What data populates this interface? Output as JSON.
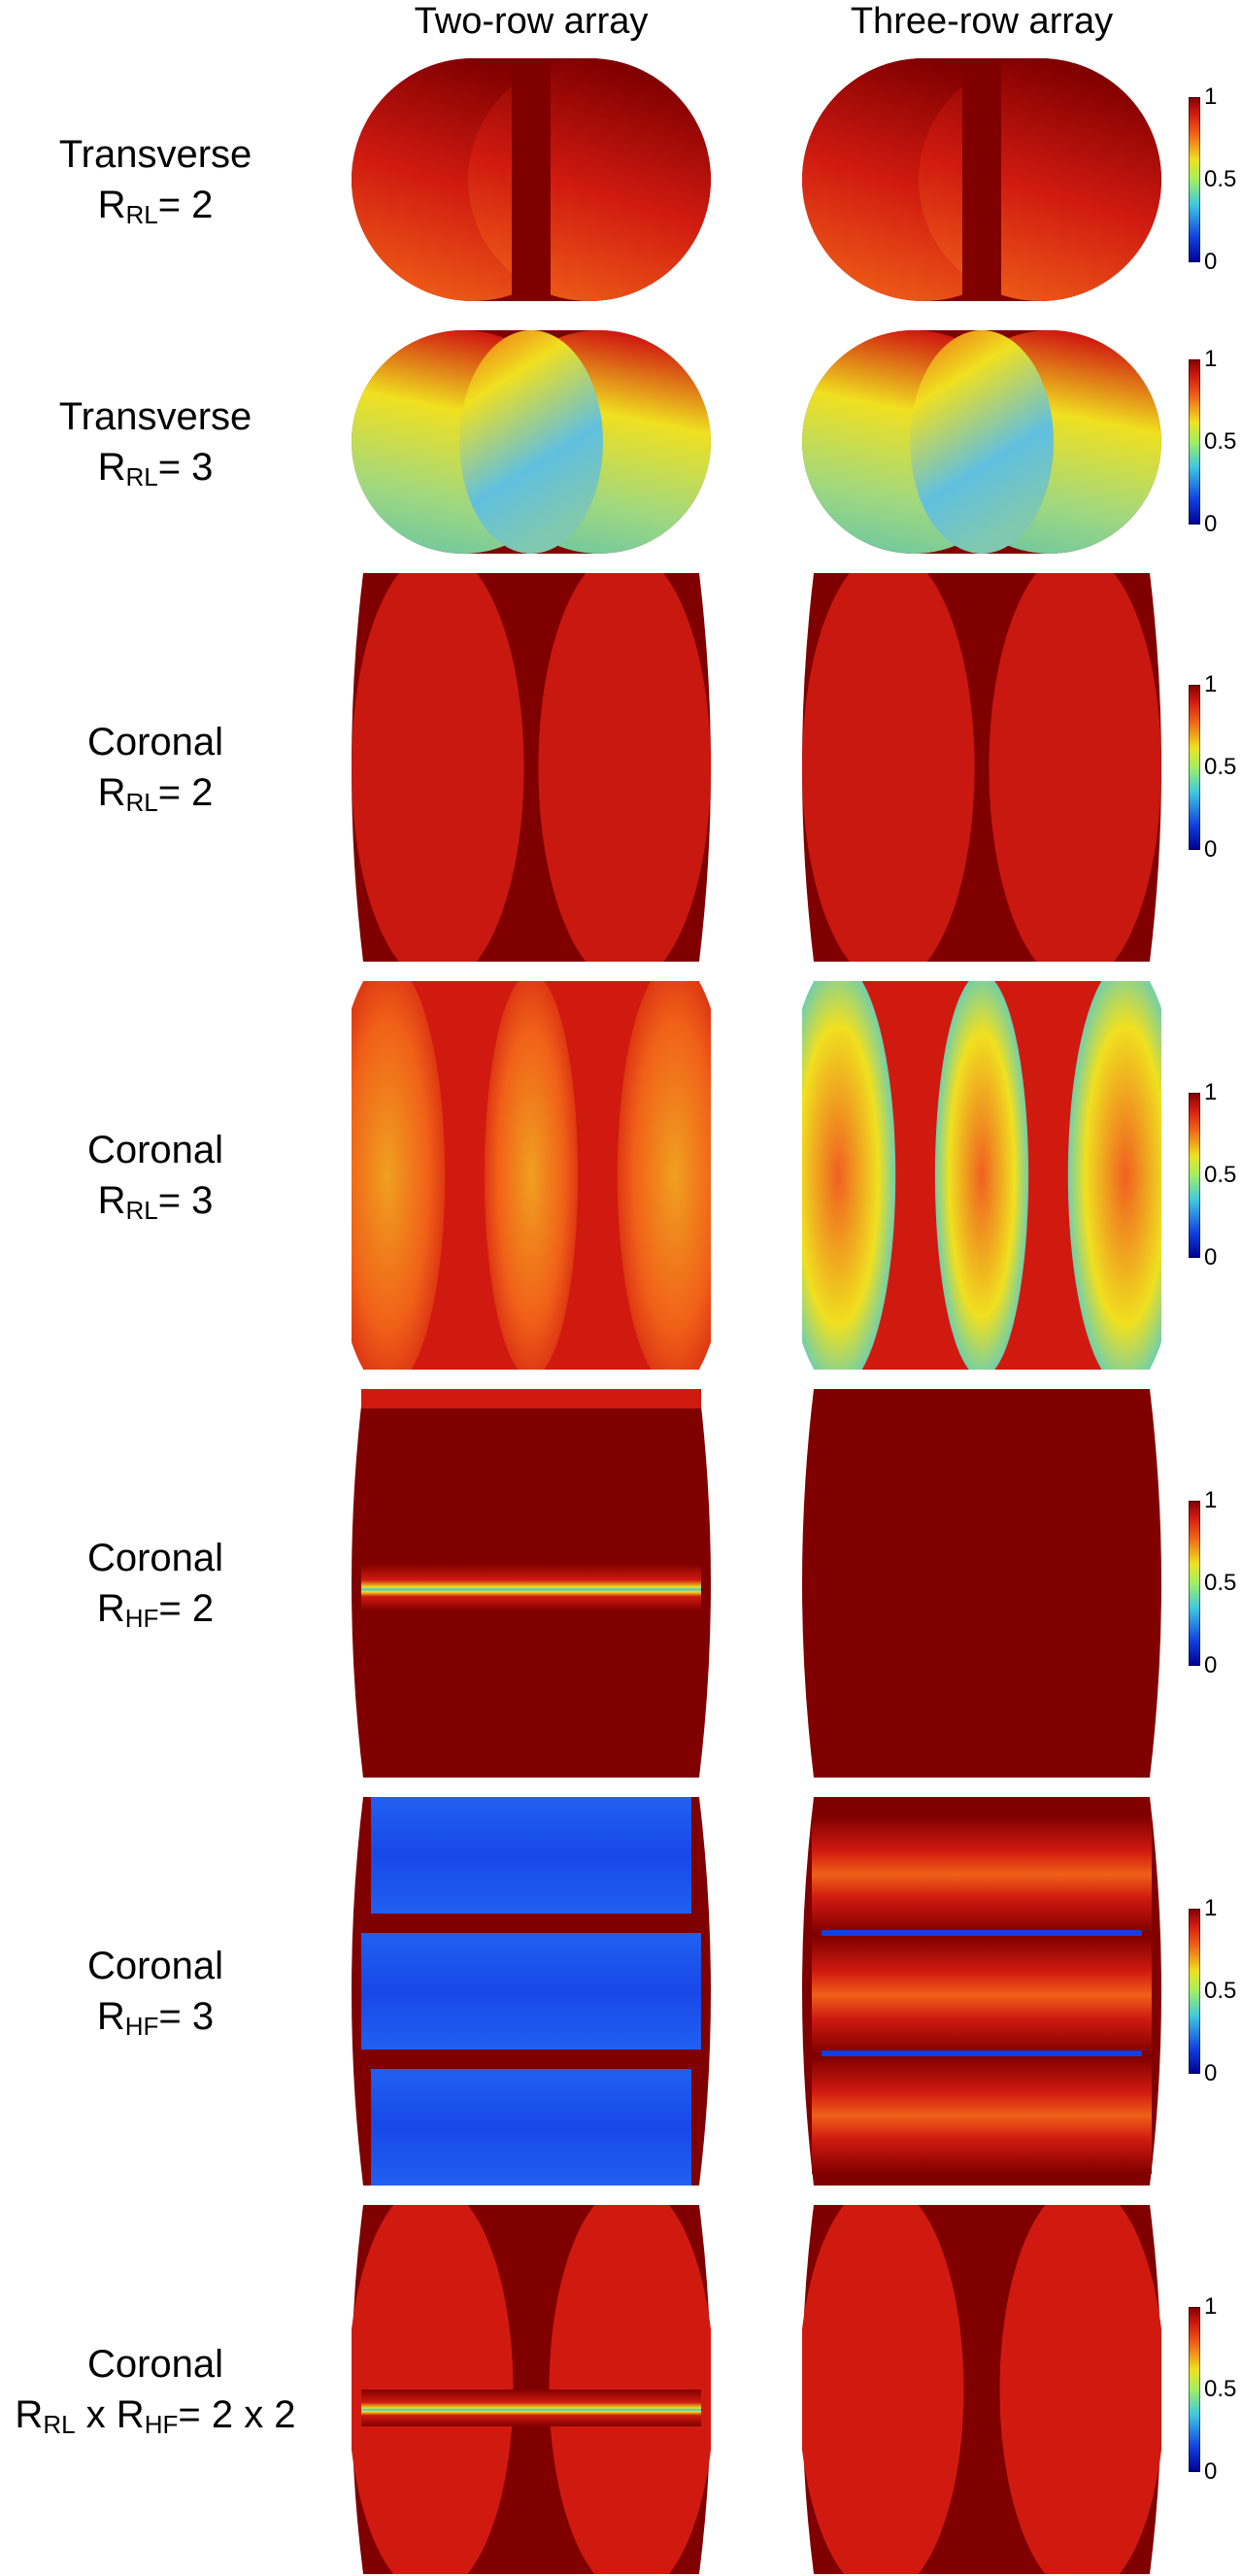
{
  "chart_data": {
    "type": "heatmap",
    "columns": [
      "Two-row array",
      "Three-row array"
    ],
    "colorbar": {
      "min": 0,
      "max": 1,
      "ticks": [
        "1",
        "0.5",
        "0"
      ],
      "colormap": "jet"
    },
    "rows": [
      {
        "plane": "Transverse",
        "r_pre": "R",
        "r_sub": "RL",
        "r_post": "= 2",
        "variant": "trans-r2"
      },
      {
        "plane": "Transverse",
        "r_pre": "R",
        "r_sub": "RL",
        "r_post": "= 3",
        "variant": "trans-r3"
      },
      {
        "plane": "Coronal",
        "r_pre": "R",
        "r_sub": "RL",
        "r_post": "= 2",
        "variant": "cor-rl2"
      },
      {
        "plane": "Coronal",
        "r_pre": "R",
        "r_sub": "RL",
        "r_post": "= 3",
        "variant": "cor-rl3"
      },
      {
        "plane": "Coronal",
        "r_pre": "R",
        "r_sub": "HF",
        "r_post": "= 2",
        "variant": "cor-hf2"
      },
      {
        "plane": "Coronal",
        "r_pre": "R",
        "r_sub": "HF",
        "r_post": "= 3",
        "variant": "cor-hf3"
      },
      {
        "plane": "Coronal",
        "r_pre": "R",
        "r_sub": "RL",
        "r_mid": " x R",
        "r_sub2": "HF",
        "r_post": "= 2 x 2",
        "variant": "cor-rlhf"
      }
    ]
  },
  "colors": {
    "dark_red": "#800000",
    "red": "#d01a10",
    "orange": "#f06018",
    "yellow": "#f0e020",
    "cyan": "#40c8e0",
    "blue": "#1040e0",
    "dark_blue": "#00008f"
  }
}
